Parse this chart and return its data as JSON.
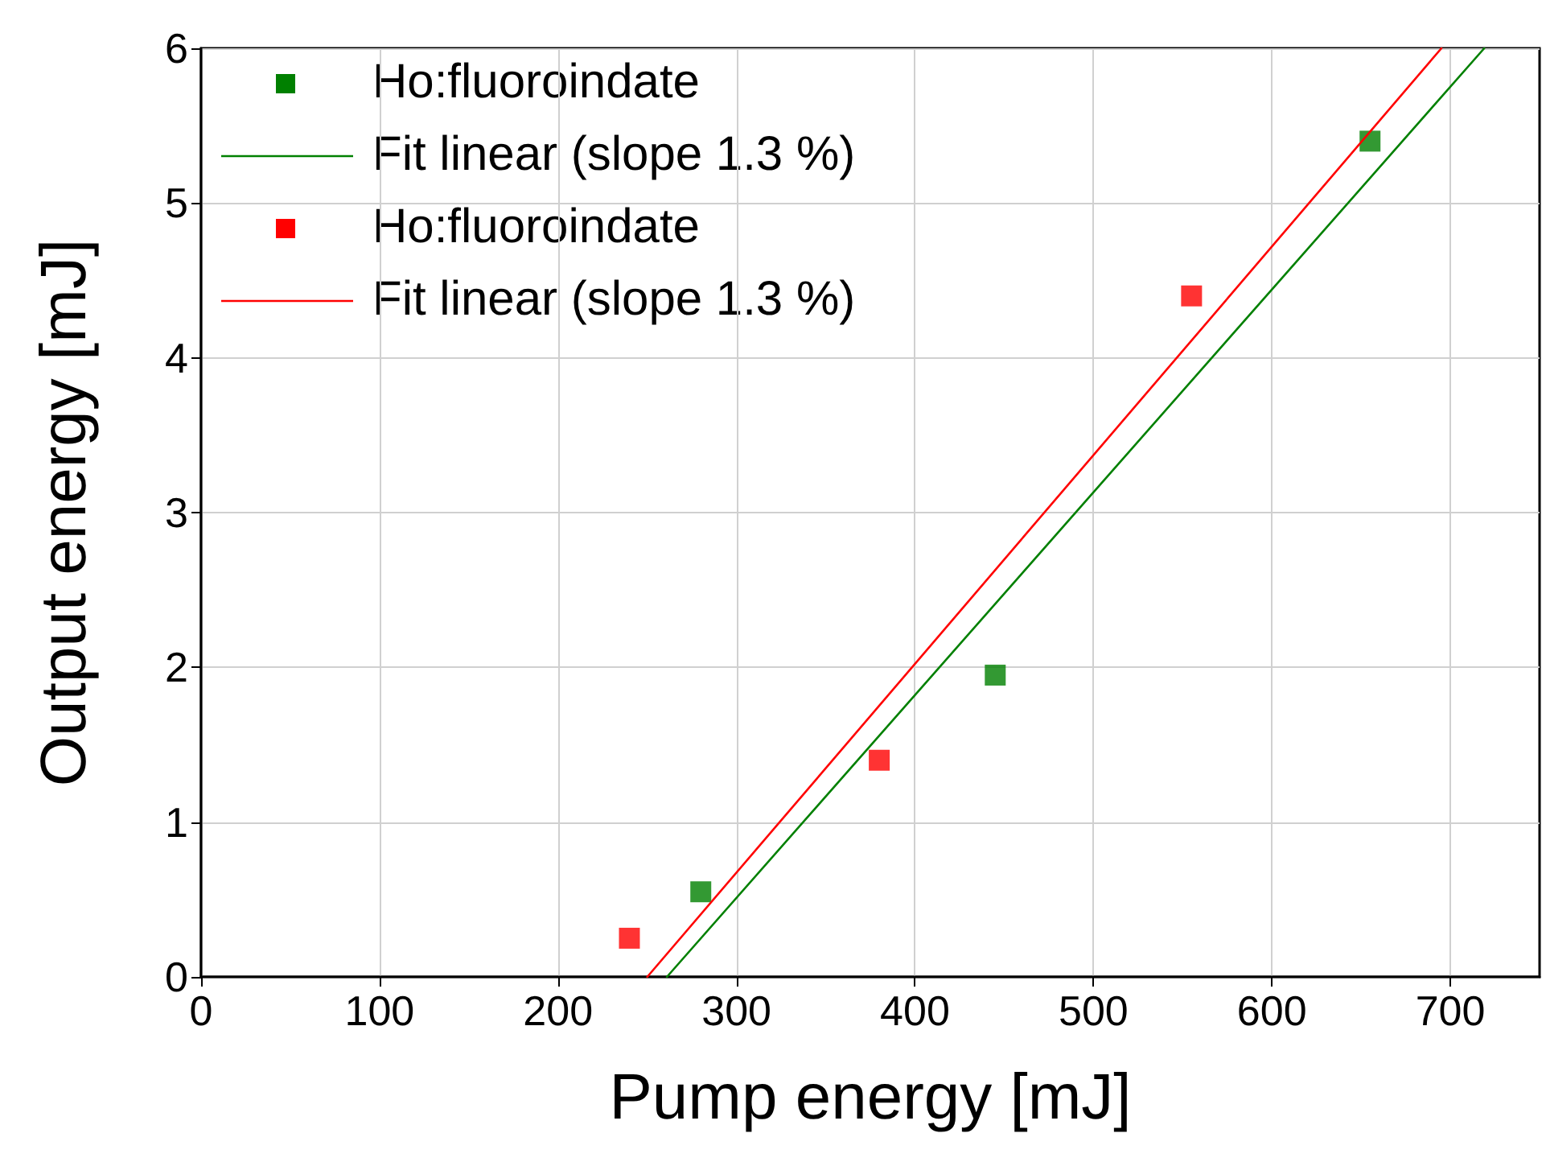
{
  "chart_data": {
    "type": "scatter",
    "xlabel": "Pump energy [mJ]",
    "ylabel": "Output energy [mJ]",
    "xlim": [
      0,
      750
    ],
    "xticks": [
      0,
      100,
      200,
      300,
      400,
      500,
      600,
      700
    ],
    "ylim": [
      0,
      6
    ],
    "yticks": [
      0,
      1,
      2,
      3,
      4,
      5,
      6
    ],
    "grid": true,
    "legend": "top left",
    "marker": "square",
    "series": [
      {
        "name": "Ho:fluoroindate",
        "color": "#008000",
        "x": [
          280,
          445,
          655
        ],
        "values": [
          0.55,
          1.95,
          5.4
        ]
      },
      {
        "name": "Fit linear (slope 1.3 %)",
        "type": "line",
        "marker": "none",
        "color": "#008000",
        "x": [
          261,
          719
        ],
        "values": [
          0,
          6
        ]
      },
      {
        "name": "Ho:fluoroindate",
        "color": "#ff0000",
        "x": [
          240,
          380,
          555
        ],
        "values": [
          0.25,
          1.4,
          4.4
        ]
      },
      {
        "name": "Fit linear (slope 1.3 %)",
        "type": "line",
        "marker": "none",
        "color": "#ff0000",
        "x": [
          250,
          695
        ],
        "values": [
          0,
          6
        ]
      }
    ]
  }
}
